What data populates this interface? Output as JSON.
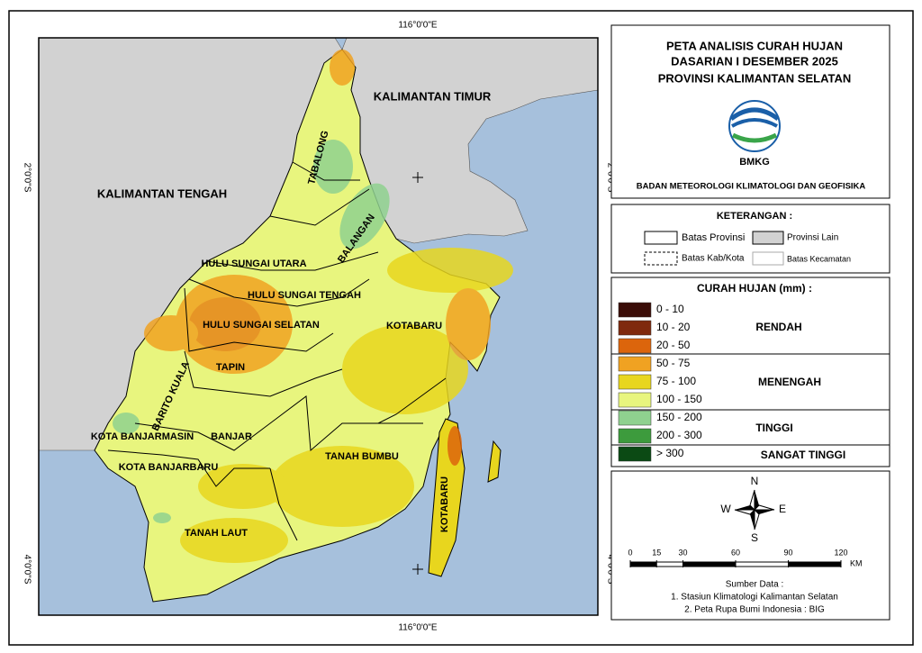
{
  "map": {
    "graticule": {
      "top_longitude": "116°0'0\"E",
      "bottom_longitude": "116°0'0\"E",
      "left_north_latitude": "2°0'0\"S",
      "right_north_latitude": "2°0'0\"S",
      "left_south_latitude": "4°0'0\"S",
      "right_south_latitude": "4°0'0\"S"
    },
    "regions": [
      "KALIMANTAN TIMUR",
      "KALIMANTAN TENGAH",
      "TABALONG",
      "BALANGAN",
      "HULU SUNGAI UTARA",
      "HULU SUNGAI TENGAH",
      "HULU SUNGAI SELATAN",
      "TAPIN",
      "BARITO KUALA",
      "KOTA BANJARMASIN",
      "BANJAR",
      "KOTA BANJARBARU",
      "TANAH LAUT",
      "TANAH BUMBU",
      "KOTABARU",
      "KOTABARU"
    ]
  },
  "title": {
    "lines": [
      "PETA ANALISIS CURAH HUJAN",
      "DASARIAN I DESEMBER 2025",
      "PROVINSI KALIMANTAN SELATAN"
    ],
    "logo_text": "BMKG",
    "agency": "BADAN METEOROLOGI KLIMATOLOGI DAN GEOFISIKA"
  },
  "keterangan": {
    "heading": "KETERANGAN :",
    "items": [
      "Batas Provinsi",
      "Provinsi Lain",
      "Batas Kab/Kota",
      "Batas Kecamatan"
    ]
  },
  "curah_hujan": {
    "heading": "CURAH HUJAN (mm) :",
    "classes": [
      {
        "range": "0 - 10",
        "color": "#3a0d08"
      },
      {
        "range": "10 - 20",
        "color": "#7f2a0e"
      },
      {
        "range": "20 - 50",
        "color": "#dc650c"
      },
      {
        "range": "50 - 75",
        "color": "#f0a222"
      },
      {
        "range": "75 - 100",
        "color": "#e8d61e"
      },
      {
        "range": "100 - 150",
        "color": "#e8f57e"
      },
      {
        "range": "150 - 200",
        "color": "#8fd18f"
      },
      {
        "range": "200 - 300",
        "color": "#3d9b3d"
      },
      {
        "range": "> 300",
        "color": "#0b4a14"
      }
    ],
    "categories": [
      "RENDAH",
      "MENENGAH",
      "TINGGI",
      "SANGAT TINGGI"
    ]
  },
  "compass": {
    "north": "N",
    "east": "E",
    "south": "S",
    "west": "W"
  },
  "scale": {
    "ticks": [
      0,
      15,
      30,
      60,
      90,
      120
    ],
    "unit": "KM"
  },
  "source": {
    "heading": "Sumber Data :",
    "lines": [
      "1. Stasiun Klimatologi Kalimantan Selatan",
      "2. Peta Rupa Bumi Indonesia : BIG"
    ]
  }
}
